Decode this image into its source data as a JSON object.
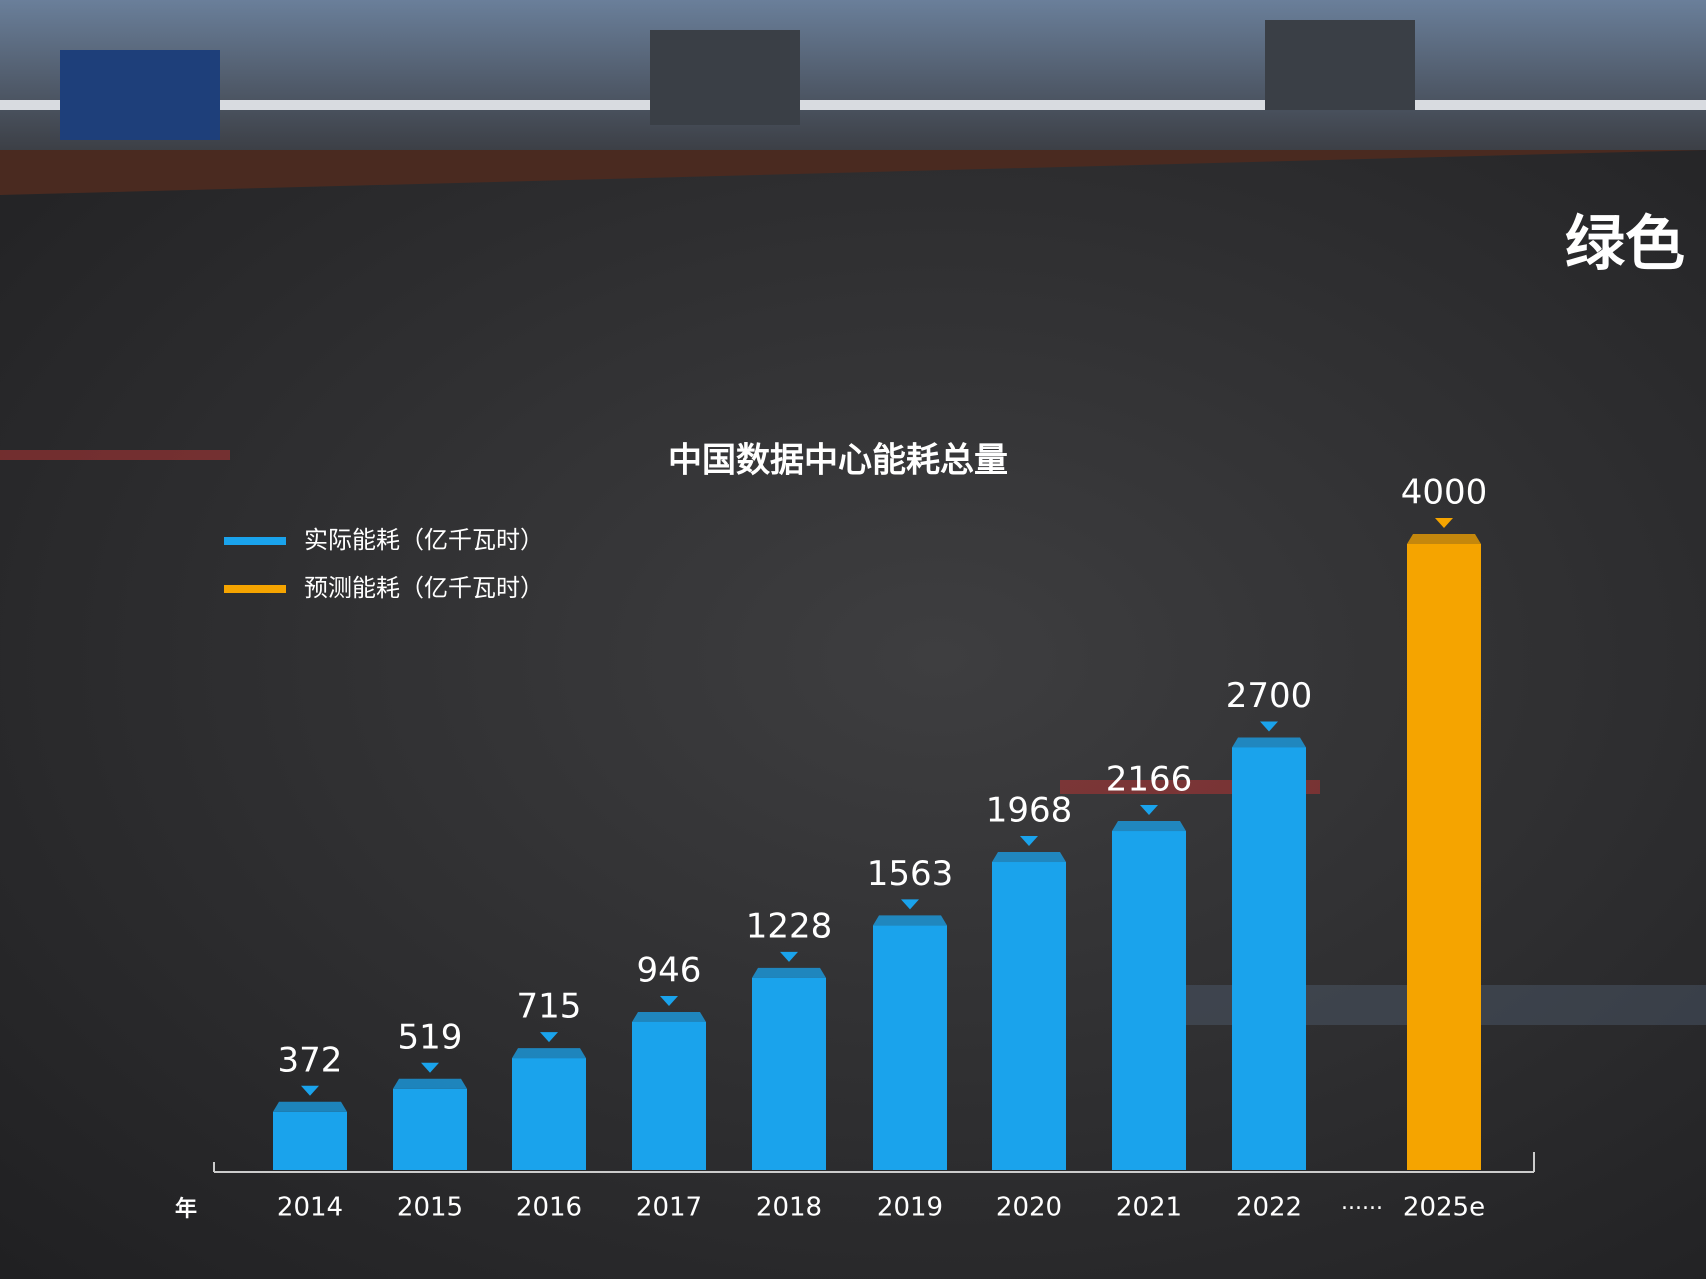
{
  "chart_data": {
    "type": "bar",
    "title": "中国数据中心能耗总量",
    "corner_text": "绿色",
    "x_label": "年",
    "break_label": "......",
    "categories": [
      "2014",
      "2015",
      "2016",
      "2017",
      "2018",
      "2019",
      "2020",
      "2021",
      "2022",
      "2025e"
    ],
    "series": [
      {
        "name": "实际能耗（亿千瓦时）",
        "color": "#1aa3ec",
        "values": [
          372,
          519,
          715,
          946,
          1228,
          1563,
          1968,
          2166,
          2700,
          null
        ]
      },
      {
        "name": "预测能耗（亿千瓦时）",
        "color": "#f5a400",
        "values": [
          null,
          null,
          null,
          null,
          null,
          null,
          null,
          null,
          null,
          4000
        ]
      }
    ],
    "ylim": [
      0,
      4000
    ],
    "legend": "upper left"
  }
}
